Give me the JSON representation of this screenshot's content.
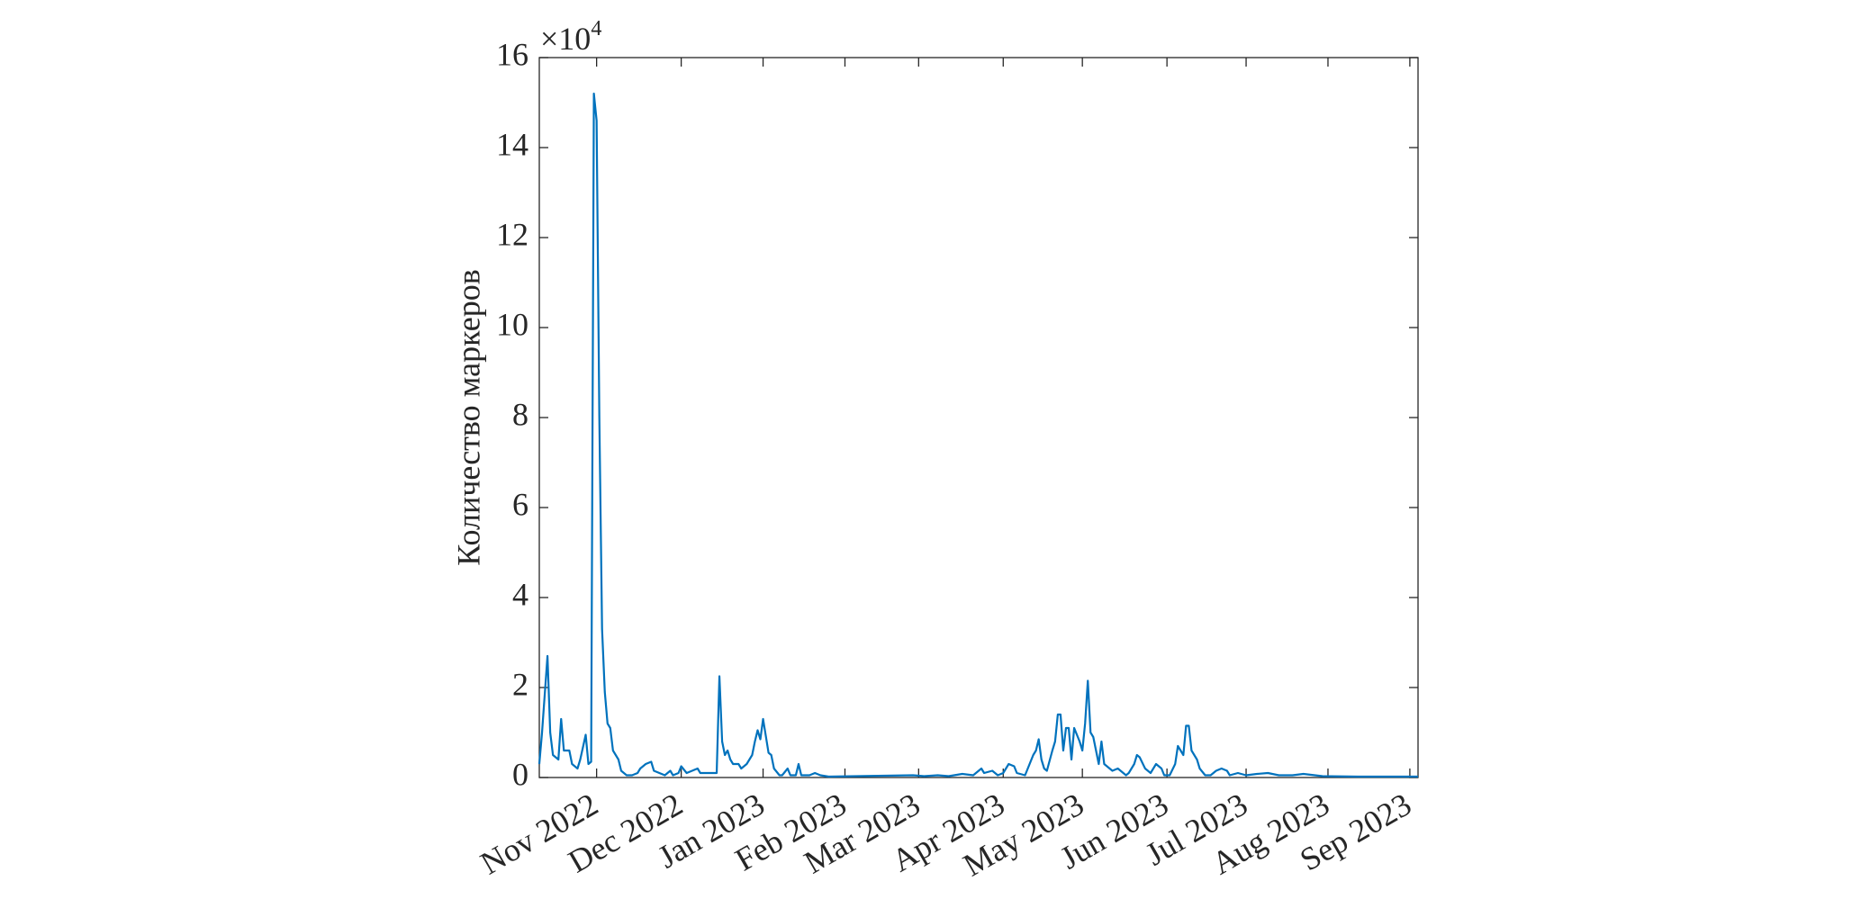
{
  "chart_data": {
    "type": "line",
    "y_label": "Количество маркеров",
    "y_multiplier": {
      "base": "×10",
      "exponent": "4"
    },
    "x": [
      0,
      1,
      3,
      4,
      5,
      7,
      8,
      9,
      11,
      12,
      14,
      15,
      17,
      18,
      19,
      20,
      21,
      22,
      23,
      24,
      25,
      26,
      27,
      29,
      30,
      32,
      34,
      36,
      37,
      39,
      41,
      42,
      44,
      46,
      48,
      49,
      51,
      52,
      54,
      56,
      58,
      59,
      62,
      65,
      66,
      67,
      68,
      69,
      70,
      71,
      73,
      74,
      76,
      78,
      79,
      80,
      81,
      82,
      84,
      85,
      86,
      88,
      89,
      91,
      92,
      94,
      95,
      96,
      99,
      101,
      103,
      106,
      137,
      141,
      146,
      150,
      155,
      159,
      162,
      163,
      166,
      168,
      170,
      172,
      174,
      175,
      178,
      179,
      181,
      182,
      183,
      184,
      185,
      186,
      188,
      189,
      190,
      191,
      192,
      193,
      194,
      195,
      196,
      198,
      199,
      200,
      201,
      202,
      203,
      204,
      205,
      206,
      207,
      210,
      212,
      215,
      216,
      218,
      219,
      220,
      222,
      224,
      226,
      228,
      229,
      231,
      233,
      234,
      236,
      237,
      238,
      239,
      241,
      242,
      244,
      246,
      248,
      250,
      252,
      253,
      256,
      259,
      263,
      267,
      271,
      276,
      280,
      287,
      300,
      313,
      322
    ],
    "series": [
      {
        "color": "#0072bd",
        "values": [
          0.3,
          1.0,
          2.7,
          1.0,
          0.5,
          0.4,
          1.3,
          0.6,
          0.6,
          0.3,
          0.2,
          0.4,
          0.95,
          0.3,
          0.35,
          15.2,
          14.6,
          8.0,
          3.3,
          1.9,
          1.2,
          1.1,
          0.6,
          0.4,
          0.15,
          0.05,
          0.05,
          0.1,
          0.2,
          0.3,
          0.35,
          0.15,
          0.1,
          0.05,
          0.15,
          0.05,
          0.1,
          0.25,
          0.1,
          0.15,
          0.2,
          0.1,
          0.1,
          0.1,
          2.25,
          0.8,
          0.5,
          0.6,
          0.4,
          0.3,
          0.3,
          0.2,
          0.3,
          0.5,
          0.8,
          1.05,
          0.85,
          1.3,
          0.55,
          0.5,
          0.2,
          0.05,
          0.05,
          0.2,
          0.05,
          0.05,
          0.3,
          0.05,
          0.05,
          0.1,
          0.05,
          0.02,
          0.05,
          0.03,
          0.05,
          0.03,
          0.08,
          0.05,
          0.2,
          0.1,
          0.15,
          0.05,
          0.1,
          0.3,
          0.25,
          0.1,
          0.05,
          0.2,
          0.5,
          0.6,
          0.85,
          0.4,
          0.2,
          0.15,
          0.6,
          0.8,
          1.4,
          1.4,
          0.6,
          1.1,
          1.1,
          0.4,
          1.1,
          0.8,
          0.6,
          1.2,
          2.15,
          1.0,
          0.9,
          0.6,
          0.3,
          0.8,
          0.3,
          0.15,
          0.2,
          0.05,
          0.1,
          0.3,
          0.5,
          0.45,
          0.2,
          0.1,
          0.3,
          0.2,
          0.05,
          0.05,
          0.3,
          0.7,
          0.5,
          1.15,
          1.15,
          0.6,
          0.4,
          0.2,
          0.05,
          0.05,
          0.15,
          0.2,
          0.15,
          0.05,
          0.1,
          0.05,
          0.08,
          0.1,
          0.05,
          0.05,
          0.08,
          0.03,
          0.02,
          0.02,
          0.02
        ]
      }
    ],
    "xlim": [
      0,
      322
    ],
    "xticks": [
      {
        "value": 21,
        "label": "Nov 2022"
      },
      {
        "value": 52,
        "label": "Dec 2022"
      },
      {
        "value": 82,
        "label": "Jan 2023"
      },
      {
        "value": 112,
        "label": "Feb 2023"
      },
      {
        "value": 139,
        "label": "Mar 2023"
      },
      {
        "value": 170,
        "label": "Apr 2023"
      },
      {
        "value": 199,
        "label": "May 2023"
      },
      {
        "value": 230,
        "label": "Jun 2023"
      },
      {
        "value": 259,
        "label": "Jul 2023"
      },
      {
        "value": 289,
        "label": "Aug 2023"
      },
      {
        "value": 319,
        "label": "Sep 2023"
      }
    ],
    "ylim": [
      0,
      16
    ],
    "yticks": [
      0,
      2,
      4,
      6,
      8,
      10,
      12,
      14,
      16
    ]
  }
}
